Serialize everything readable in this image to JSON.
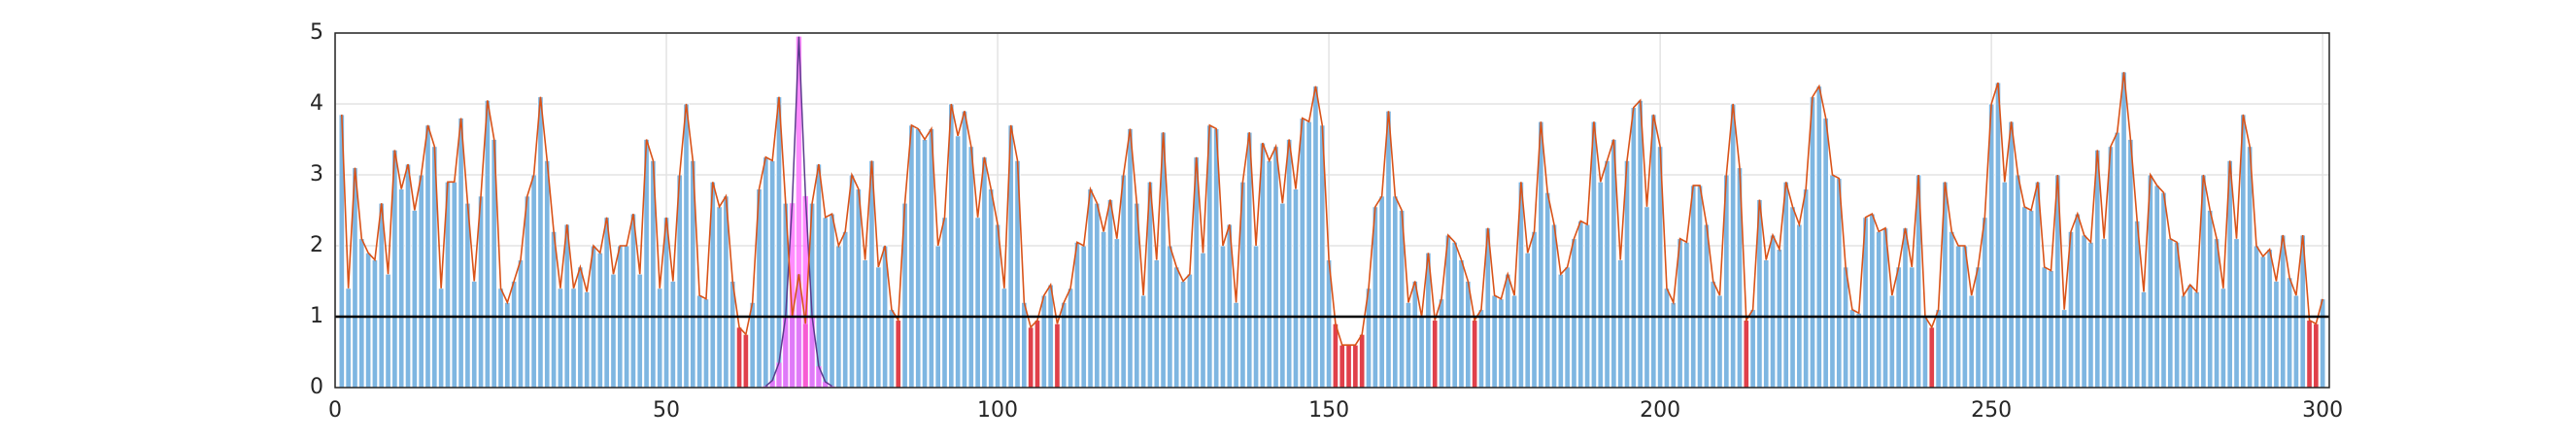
{
  "chart_data": {
    "type": "bar",
    "x": [
      1,
      2,
      3,
      4,
      5,
      6,
      7,
      8,
      9,
      10,
      11,
      12,
      13,
      14,
      15,
      16,
      17,
      18,
      19,
      20,
      21,
      22,
      23,
      24,
      25,
      26,
      27,
      28,
      29,
      30,
      31,
      32,
      33,
      34,
      35,
      36,
      37,
      38,
      39,
      40,
      41,
      42,
      43,
      44,
      45,
      46,
      47,
      48,
      49,
      50,
      51,
      52,
      53,
      54,
      55,
      56,
      57,
      58,
      59,
      60,
      61,
      62,
      63,
      64,
      65,
      66,
      67,
      68,
      69,
      70,
      71,
      72,
      73,
      74,
      75,
      76,
      77,
      78,
      79,
      80,
      81,
      82,
      83,
      84,
      85,
      86,
      87,
      88,
      89,
      90,
      91,
      92,
      93,
      94,
      95,
      96,
      97,
      98,
      99,
      100,
      101,
      102,
      103,
      104,
      105,
      106,
      107,
      108,
      109,
      110,
      111,
      112,
      113,
      114,
      115,
      116,
      117,
      118,
      119,
      120,
      121,
      122,
      123,
      124,
      125,
      126,
      127,
      128,
      129,
      130,
      131,
      132,
      133,
      134,
      135,
      136,
      137,
      138,
      139,
      140,
      141,
      142,
      143,
      144,
      145,
      146,
      147,
      148,
      149,
      150,
      151,
      152,
      153,
      154,
      155,
      156,
      157,
      158,
      159,
      160,
      161,
      162,
      163,
      164,
      165,
      166,
      167,
      168,
      169,
      170,
      171,
      172,
      173,
      174,
      175,
      176,
      177,
      178,
      179,
      180,
      181,
      182,
      183,
      184,
      185,
      186,
      187,
      188,
      189,
      190,
      191,
      192,
      193,
      194,
      195,
      196,
      197,
      198,
      199,
      200,
      201,
      202,
      203,
      204,
      205,
      206,
      207,
      208,
      209,
      210,
      211,
      212,
      213,
      214,
      215,
      216,
      217,
      218,
      219,
      220,
      221,
      222,
      223,
      224,
      225,
      226,
      227,
      228,
      229,
      230,
      231,
      232,
      233,
      234,
      235,
      236,
      237,
      238,
      239,
      240,
      241,
      242,
      243,
      244,
      245,
      246,
      247,
      248,
      249,
      250,
      251,
      252,
      253,
      254,
      255,
      256,
      257,
      258,
      259,
      260,
      261,
      262,
      263,
      264,
      265,
      266,
      267,
      268,
      269,
      270,
      271,
      272,
      273,
      274,
      275,
      276,
      277,
      278,
      279,
      280,
      281,
      282,
      283,
      284,
      285,
      286,
      287,
      288,
      289,
      290,
      291,
      292,
      293,
      294,
      295,
      296,
      297,
      298,
      299,
      300
    ],
    "values": [
      3.85,
      1.4,
      3.1,
      2.1,
      1.9,
      1.8,
      2.6,
      1.6,
      3.35,
      2.8,
      3.15,
      2.5,
      3.0,
      3.7,
      3.4,
      1.4,
      2.9,
      2.9,
      3.8,
      2.6,
      1.5,
      2.7,
      4.05,
      3.5,
      1.4,
      1.2,
      1.5,
      1.8,
      2.7,
      3.0,
      4.1,
      3.2,
      2.2,
      1.4,
      2.3,
      1.4,
      1.7,
      1.35,
      2.0,
      1.9,
      2.4,
      1.6,
      2.0,
      2.0,
      2.45,
      1.6,
      3.5,
      3.2,
      1.4,
      2.4,
      1.5,
      3.0,
      4.0,
      3.2,
      1.3,
      1.25,
      2.9,
      2.55,
      2.7,
      1.5,
      0.85,
      0.75,
      1.2,
      2.8,
      3.25,
      3.2,
      4.1,
      2.6,
      1.0,
      1.6,
      0.9,
      2.6,
      3.15,
      2.4,
      2.45,
      2.0,
      2.2,
      3.0,
      2.8,
      1.8,
      3.2,
      1.7,
      2.0,
      1.1,
      0.95,
      2.6,
      3.7,
      3.65,
      3.5,
      3.65,
      2.0,
      2.4,
      4.0,
      3.55,
      3.9,
      3.4,
      2.4,
      3.25,
      2.8,
      2.3,
      1.4,
      3.7,
      3.2,
      1.2,
      0.85,
      0.95,
      1.3,
      1.45,
      0.9,
      1.2,
      1.4,
      2.05,
      2.0,
      2.8,
      2.6,
      2.2,
      2.65,
      2.1,
      3.0,
      3.65,
      2.6,
      1.3,
      2.9,
      1.8,
      3.6,
      2.0,
      1.7,
      1.5,
      1.6,
      3.25,
      1.9,
      3.7,
      3.65,
      2.0,
      2.3,
      1.2,
      2.9,
      3.6,
      2.0,
      3.45,
      3.2,
      3.4,
      2.6,
      3.5,
      2.8,
      3.8,
      3.75,
      4.25,
      3.7,
      1.8,
      0.9,
      0.6,
      0.6,
      0.6,
      0.75,
      1.4,
      2.55,
      2.7,
      3.9,
      2.7,
      2.5,
      1.2,
      1.5,
      1.0,
      1.9,
      0.95,
      1.25,
      2.15,
      2.05,
      1.8,
      1.5,
      0.95,
      1.1,
      2.25,
      1.3,
      1.25,
      1.6,
      1.3,
      2.9,
      1.9,
      2.2,
      3.75,
      2.75,
      2.3,
      1.6,
      1.7,
      2.1,
      2.35,
      2.3,
      3.75,
      2.9,
      3.2,
      3.5,
      1.8,
      3.2,
      3.95,
      4.05,
      2.55,
      3.85,
      3.4,
      1.4,
      1.2,
      2.1,
      2.05,
      2.85,
      2.85,
      2.3,
      1.5,
      1.3,
      3.0,
      4.0,
      3.1,
      0.95,
      1.1,
      2.65,
      1.8,
      2.15,
      1.95,
      2.9,
      2.55,
      2.3,
      2.8,
      4.1,
      4.25,
      3.8,
      3.0,
      2.95,
      1.7,
      1.1,
      1.05,
      2.4,
      2.45,
      2.2,
      2.25,
      1.3,
      1.7,
      2.25,
      1.7,
      3.0,
      1.0,
      0.85,
      1.1,
      2.9,
      2.2,
      2.0,
      2.0,
      1.3,
      1.7,
      2.4,
      4.0,
      4.3,
      2.9,
      3.75,
      3.0,
      2.55,
      2.5,
      2.9,
      1.7,
      1.65,
      3.0,
      1.1,
      2.2,
      2.45,
      2.15,
      2.05,
      3.35,
      2.1,
      3.4,
      3.6,
      4.45,
      3.5,
      2.35,
      1.35,
      3.0,
      2.85,
      2.75,
      2.1,
      2.05,
      1.3,
      1.45,
      1.35,
      3.0,
      2.5,
      2.1,
      1.4,
      3.2,
      2.1,
      3.85,
      3.4,
      2.0,
      1.85,
      1.95,
      1.5,
      2.15,
      1.55,
      1.3,
      2.15,
      0.95,
      0.9,
      1.25
    ],
    "color": "#7eb6e1",
    "below_color": "#e0404a",
    "line_color": "#d95319",
    "threshold": 1,
    "threshold_color": "#000000",
    "peak": {
      "x": [
        65,
        66,
        67,
        68,
        69,
        70,
        71,
        72,
        73,
        74,
        75
      ],
      "values": [
        0.02,
        0.1,
        0.35,
        1.0,
        2.6,
        4.95,
        2.7,
        1.0,
        0.3,
        0.08,
        0.02
      ],
      "color": "#ff66ff",
      "edge_color": "#5a3a8c"
    },
    "xlim": [
      0,
      301
    ],
    "xticks": [
      0,
      50,
      100,
      150,
      200,
      250,
      300
    ],
    "ylim": [
      0,
      5
    ],
    "yticks": [
      0,
      1,
      2,
      3,
      4,
      5
    ],
    "grid": true
  }
}
